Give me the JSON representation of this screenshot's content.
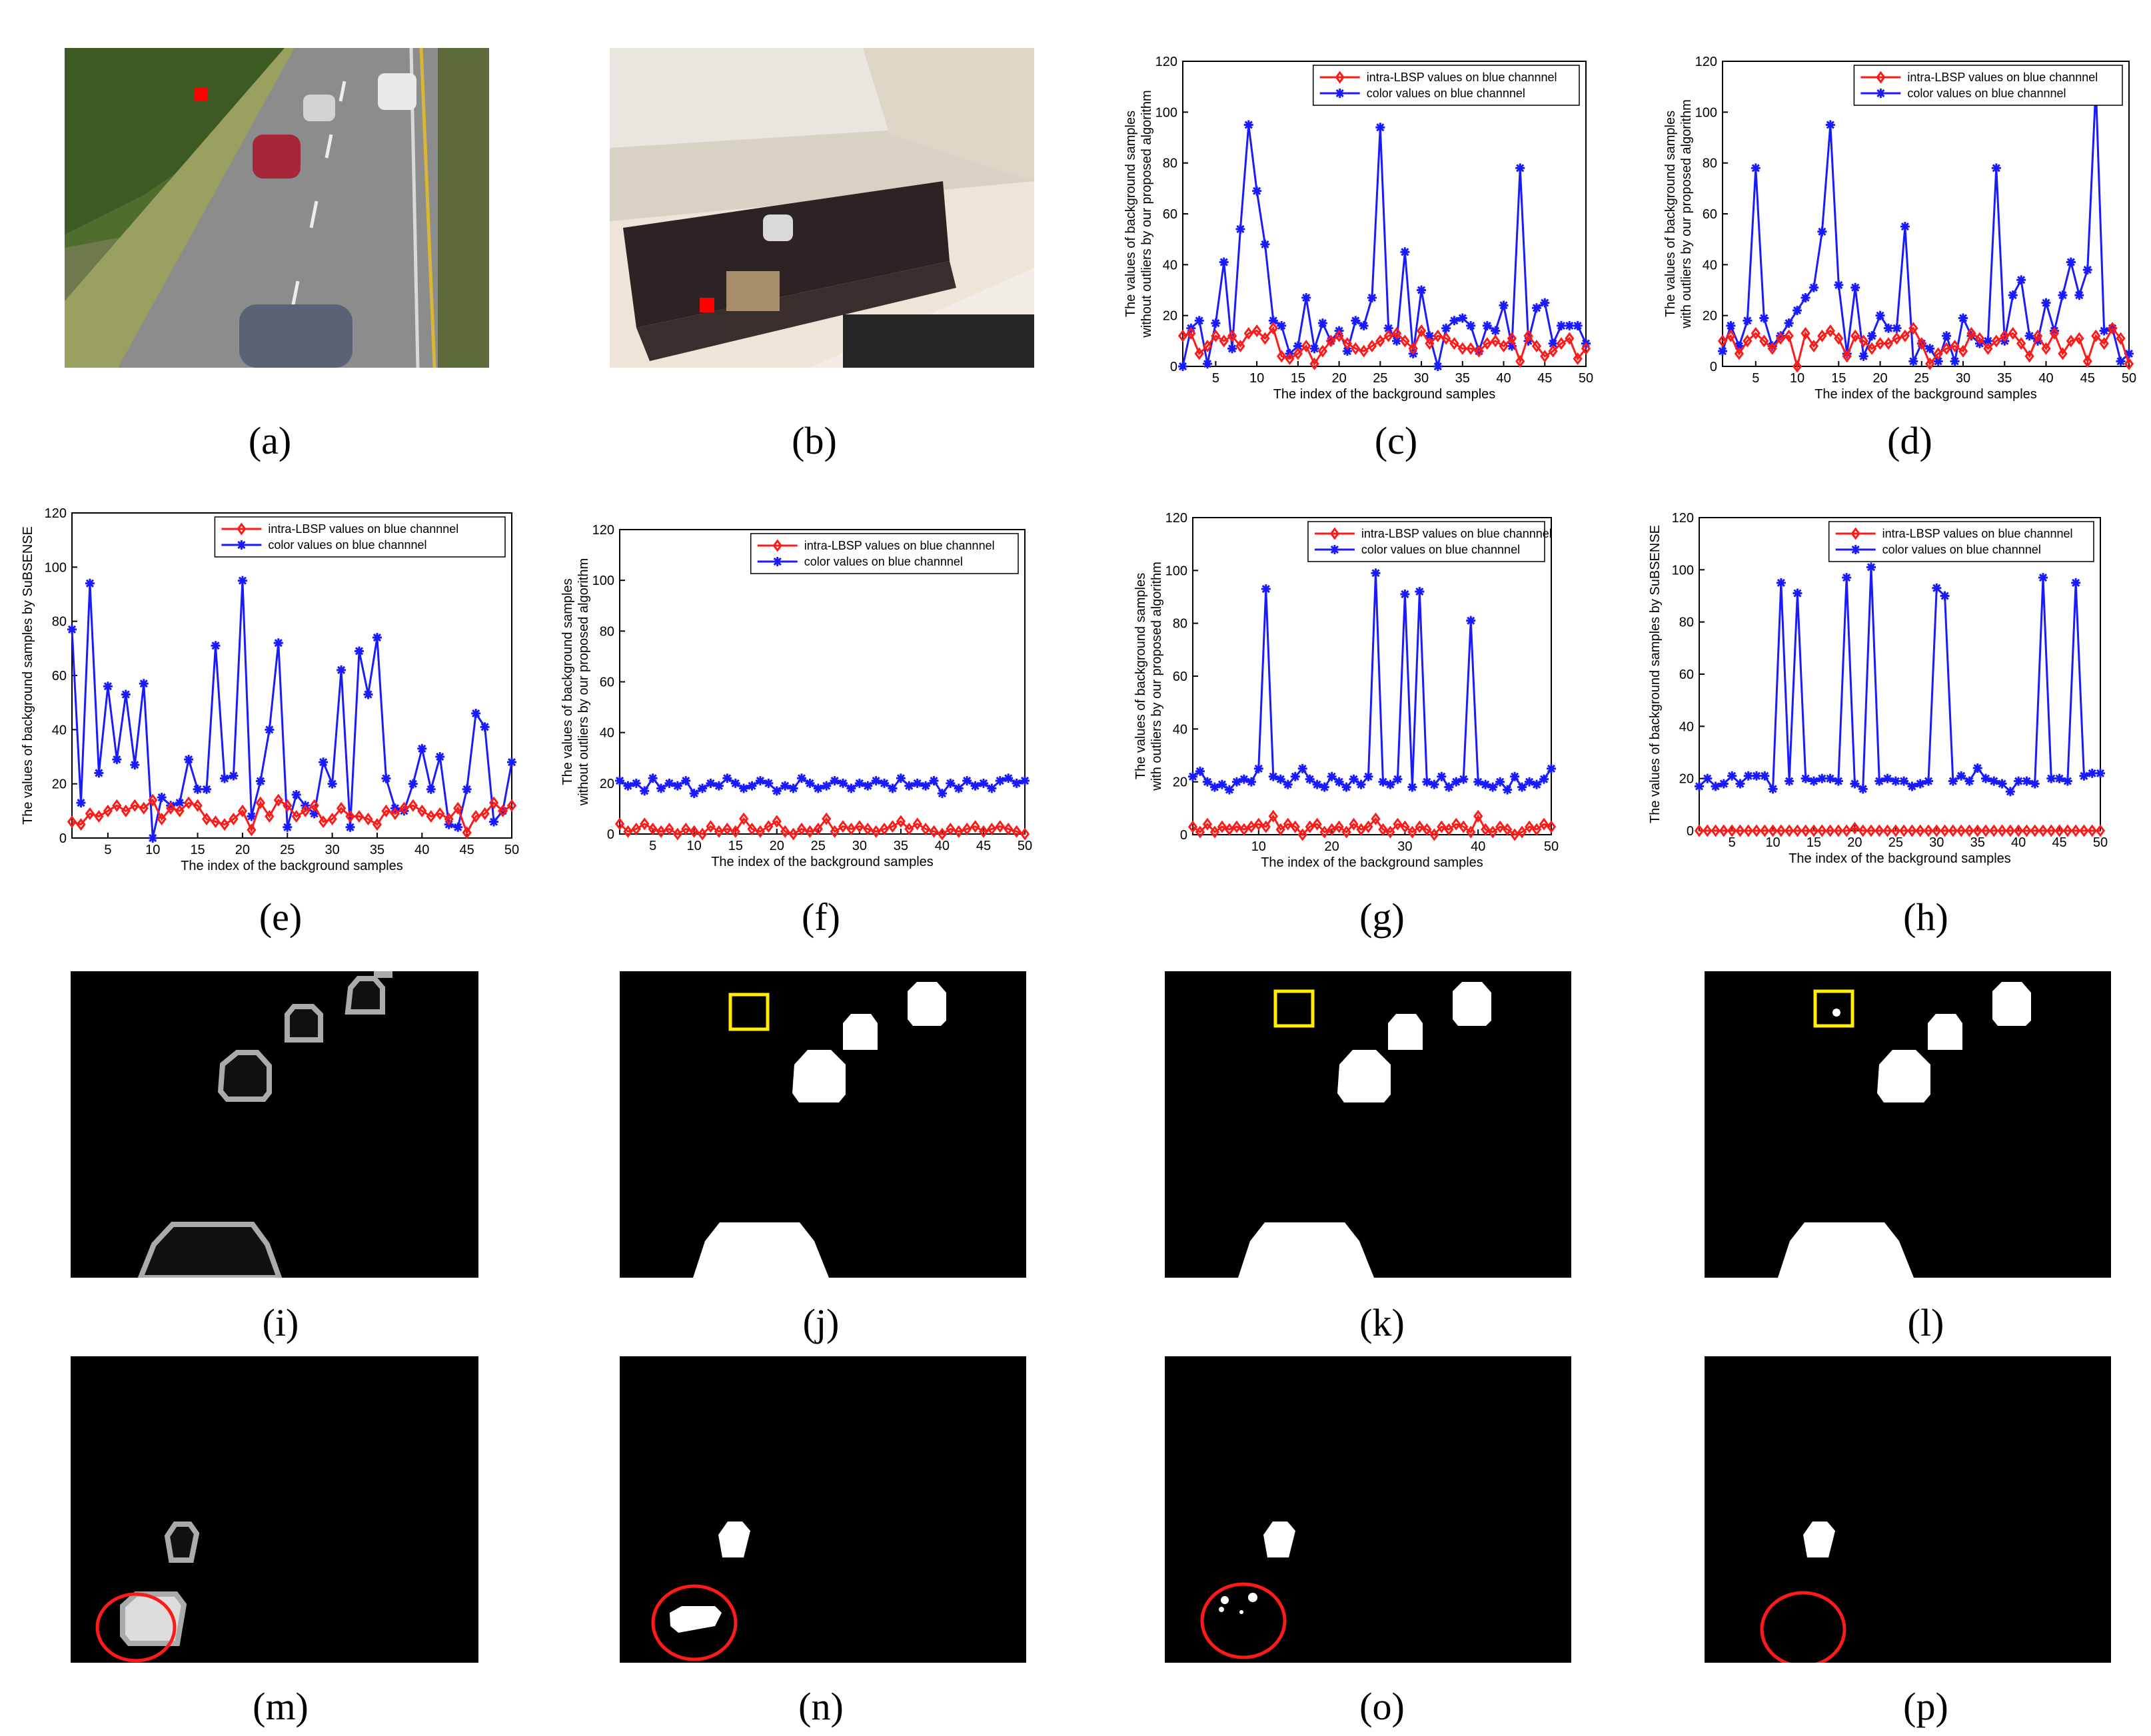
{
  "captions": [
    "(a)",
    "(b)",
    "(c)",
    "(d)",
    "(e)",
    "(f)",
    "(g)",
    "(h)",
    "(i)",
    "(j)",
    "(k)",
    "(l)",
    "(m)",
    "(n)",
    "(o)",
    "(p)"
  ],
  "colors": {
    "intra": "#ff1a1a",
    "color": "#1a1aff",
    "marker": "#ff0000",
    "yellow": "#ffee00",
    "circle": "#ff1a1a"
  },
  "chart_data": [
    {
      "id": "c",
      "type": "line",
      "xlabel": "The index of the background samples",
      "ylabel": [
        "The values of background samples",
        "without outliers by our proposed algorithm"
      ],
      "xlim": [
        1,
        50
      ],
      "ylim": [
        0,
        120
      ],
      "xticks": [
        5,
        10,
        15,
        20,
        25,
        30,
        35,
        40,
        45,
        50
      ],
      "yticks": [
        0,
        20,
        40,
        60,
        80,
        100,
        120
      ],
      "legend": "top-right",
      "series": [
        {
          "name": "intra-LBSP values on blue channnel",
          "marker": "diamond",
          "values": [
            12,
            13,
            5,
            8,
            12,
            10,
            12,
            8,
            13,
            14,
            11,
            15,
            4,
            3,
            5,
            8,
            1,
            6,
            10,
            12,
            9,
            7,
            6,
            8,
            10,
            12,
            13,
            10,
            7,
            14,
            9,
            12,
            11,
            9,
            7,
            7,
            6,
            9,
            10,
            8,
            11,
            2,
            12,
            8,
            4,
            6,
            9,
            11,
            3,
            7
          ]
        },
        {
          "name": "color values on blue channnel",
          "marker": "star",
          "values": [
            0,
            15,
            18,
            1,
            17,
            41,
            7,
            54,
            95,
            69,
            48,
            18,
            16,
            5,
            8,
            27,
            7,
            17,
            10,
            14,
            6,
            18,
            16,
            27,
            94,
            15,
            10,
            45,
            5,
            30,
            12,
            0,
            15,
            18,
            19,
            16,
            6,
            16,
            14,
            24,
            8,
            78,
            10,
            23,
            25,
            9,
            16,
            16,
            16,
            9
          ]
        }
      ]
    },
    {
      "id": "d",
      "type": "line",
      "xlabel": "The index of the background samples",
      "ylabel": [
        "The values of background samples",
        "with outliers by our proposed algorithm"
      ],
      "xlim": [
        1,
        50
      ],
      "ylim": [
        0,
        120
      ],
      "xticks": [
        5,
        10,
        15,
        20,
        25,
        30,
        35,
        40,
        45,
        50
      ],
      "yticks": [
        0,
        20,
        40,
        60,
        80,
        100,
        120
      ],
      "legend": "top-right",
      "series": [
        {
          "name": "intra-LBSP values on blue channnel",
          "marker": "diamond",
          "values": [
            10,
            12,
            5,
            10,
            13,
            10,
            7,
            11,
            12,
            0,
            13,
            8,
            12,
            14,
            11,
            4,
            12,
            10,
            7,
            9,
            9,
            11,
            12,
            15,
            9,
            1,
            5,
            7,
            8,
            6,
            13,
            11,
            7,
            10,
            12,
            13,
            9,
            4,
            12,
            7,
            13,
            5,
            10,
            11,
            2,
            12,
            9,
            15,
            11,
            1
          ]
        },
        {
          "name": "color values on blue channnel",
          "marker": "star",
          "values": [
            6,
            16,
            8,
            18,
            78,
            19,
            8,
            12,
            17,
            22,
            27,
            31,
            53,
            95,
            32,
            5,
            31,
            4,
            12,
            20,
            15,
            15,
            55,
            2,
            9,
            7,
            2,
            12,
            2,
            19,
            12,
            9,
            10,
            78,
            10,
            28,
            34,
            12,
            10,
            25,
            14,
            28,
            41,
            28,
            38,
            110,
            14,
            15,
            2,
            5
          ]
        }
      ]
    },
    {
      "id": "e",
      "type": "line",
      "xlabel": "The index of the background samples",
      "ylabel": [
        "The values of background samples by SuBSENSE"
      ],
      "xlim": [
        1,
        50
      ],
      "ylim": [
        0,
        120
      ],
      "xticks": [
        5,
        10,
        15,
        20,
        25,
        30,
        35,
        40,
        45,
        50
      ],
      "yticks": [
        0,
        20,
        40,
        60,
        80,
        100,
        120
      ],
      "legend": "top-right",
      "series": [
        {
          "name": "intra-LBSP values on blue channnel",
          "marker": "diamond",
          "values": [
            6,
            5,
            9,
            8,
            10,
            12,
            10,
            12,
            11,
            14,
            7,
            11,
            10,
            13,
            12,
            7,
            6,
            5,
            7,
            10,
            3,
            13,
            8,
            14,
            12,
            8,
            10,
            12,
            6,
            7,
            11,
            8,
            8,
            7,
            5,
            10,
            9,
            11,
            12,
            10,
            8,
            9,
            7,
            11,
            2,
            8,
            9,
            13,
            10,
            12
          ]
        },
        {
          "name": "color values on blue channnel",
          "marker": "star",
          "values": [
            77,
            13,
            94,
            24,
            56,
            29,
            53,
            27,
            57,
            0,
            15,
            12,
            13,
            29,
            18,
            18,
            71,
            22,
            23,
            95,
            8,
            21,
            40,
            72,
            4,
            16,
            12,
            9,
            28,
            20,
            62,
            4,
            69,
            53,
            74,
            22,
            11,
            10,
            20,
            33,
            18,
            30,
            5,
            4,
            18,
            46,
            41,
            6,
            10,
            28
          ]
        }
      ]
    },
    {
      "id": "f",
      "type": "line",
      "xlabel": "The index of the background samples",
      "ylabel": [
        "The values of background samples",
        "without outliers by our proposed algorithm"
      ],
      "xlim": [
        1,
        50
      ],
      "ylim": [
        0,
        120
      ],
      "xticks": [
        5,
        10,
        15,
        20,
        25,
        30,
        35,
        40,
        45,
        50
      ],
      "yticks": [
        0,
        20,
        40,
        60,
        80,
        100,
        120
      ],
      "legend": "top-right",
      "series": [
        {
          "name": "intra-LBSP values on blue channnel",
          "marker": "diamond",
          "values": [
            4,
            1,
            2,
            4,
            2,
            1,
            2,
            0,
            2,
            1,
            0,
            3,
            1,
            2,
            1,
            6,
            2,
            1,
            3,
            5,
            1,
            0,
            2,
            1,
            2,
            6,
            1,
            3,
            2,
            3,
            2,
            1,
            2,
            3,
            5,
            2,
            4,
            2,
            1,
            0,
            2,
            1,
            2,
            3,
            1,
            2,
            3,
            2,
            1,
            0
          ]
        },
        {
          "name": "color values on blue channnel",
          "marker": "star",
          "values": [
            21,
            19,
            20,
            17,
            22,
            18,
            20,
            19,
            21,
            16,
            18,
            20,
            19,
            22,
            20,
            18,
            19,
            21,
            20,
            17,
            19,
            18,
            22,
            20,
            18,
            19,
            21,
            20,
            18,
            20,
            19,
            21,
            20,
            18,
            22,
            19,
            20,
            19,
            21,
            16,
            20,
            18,
            21,
            19,
            20,
            18,
            21,
            22,
            20,
            21
          ]
        }
      ]
    },
    {
      "id": "g",
      "type": "line",
      "xlabel": "The index of the background samples",
      "ylabel": [
        "The values of background samples",
        "with outliers by our proposed algorithm"
      ],
      "xlim": [
        1,
        50
      ],
      "ylim": [
        0,
        120
      ],
      "xticks": [
        10,
        20,
        30,
        40,
        50
      ],
      "yticks": [
        0,
        20,
        40,
        60,
        80,
        100,
        120
      ],
      "legend": "top-right",
      "series": [
        {
          "name": "intra-LBSP values on blue channnel",
          "marker": "diamond",
          "values": [
            3,
            1,
            4,
            1,
            3,
            2,
            3,
            2,
            3,
            4,
            3,
            7,
            2,
            4,
            3,
            0,
            3,
            4,
            1,
            2,
            3,
            1,
            4,
            2,
            3,
            6,
            2,
            1,
            4,
            3,
            1,
            3,
            2,
            0,
            3,
            2,
            4,
            3,
            1,
            7,
            2,
            1,
            3,
            2,
            0,
            1,
            3,
            2,
            4,
            3
          ]
        },
        {
          "name": "color values on blue channnel",
          "marker": "star",
          "values": [
            22,
            24,
            20,
            18,
            19,
            17,
            20,
            21,
            20,
            25,
            93,
            22,
            21,
            19,
            22,
            25,
            21,
            19,
            18,
            22,
            20,
            18,
            21,
            19,
            22,
            99,
            20,
            19,
            21,
            91,
            18,
            92,
            20,
            19,
            22,
            18,
            20,
            21,
            81,
            20,
            19,
            18,
            20,
            17,
            22,
            18,
            20,
            19,
            21,
            25
          ]
        }
      ]
    },
    {
      "id": "h",
      "type": "line",
      "xlabel": "The index of the background samples",
      "ylabel": [
        "The values of background samples by SuBSENSE"
      ],
      "xlim": [
        1,
        50
      ],
      "ylim": [
        0,
        120
      ],
      "xticks": [
        5,
        10,
        15,
        20,
        25,
        30,
        35,
        40,
        45,
        50
      ],
      "yticks": [
        0,
        20,
        40,
        60,
        80,
        100,
        120
      ],
      "legend": "top-right",
      "series": [
        {
          "name": "intra-LBSP values on blue channnel",
          "marker": "diamond",
          "values": [
            0,
            0,
            0,
            0,
            0,
            0,
            0,
            0,
            0,
            0,
            0,
            0,
            0,
            0,
            0,
            0,
            0,
            0,
            0,
            1,
            0,
            0,
            0,
            0,
            0,
            0,
            0,
            0,
            0,
            0,
            0,
            0,
            0,
            0,
            0,
            0,
            0,
            0,
            0,
            0,
            0,
            0,
            0,
            0,
            0,
            0,
            0,
            0,
            0,
            0
          ]
        },
        {
          "name": "color values on blue channnel",
          "marker": "star",
          "values": [
            17,
            20,
            17,
            18,
            21,
            18,
            21,
            21,
            21,
            16,
            95,
            19,
            91,
            20,
            19,
            20,
            20,
            19,
            97,
            18,
            16,
            101,
            19,
            20,
            19,
            19,
            17,
            18,
            19,
            93,
            90,
            19,
            21,
            19,
            24,
            20,
            19,
            18,
            15,
            19,
            19,
            18,
            97,
            20,
            20,
            19,
            95,
            21,
            22,
            22
          ]
        }
      ]
    }
  ]
}
